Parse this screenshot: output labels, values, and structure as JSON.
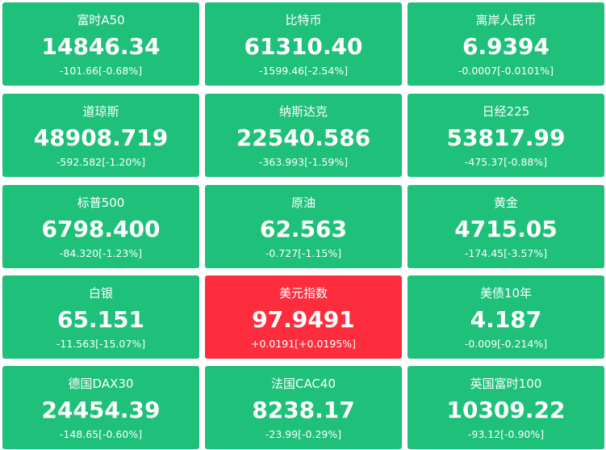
{
  "tiles": [
    {
      "name": "富时A50",
      "price": "14846.34",
      "change": "-101.66[-0.68%]",
      "color": "#1ec07a"
    },
    {
      "name": "比特币",
      "price": "61310.40",
      "change": "-1599.46[-2.54%]",
      "color": "#1ec07a"
    },
    {
      "name": "离岸人民币",
      "price": "6.9394",
      "change": "-0.0007[-0.0101%]",
      "color": "#1ec07a"
    },
    {
      "name": "道琼斯",
      "price": "48908.719",
      "change": "-592.582[-1.20%]",
      "color": "#1ec07a"
    },
    {
      "name": "纳斯达克",
      "price": "22540.586",
      "change": "-363.993[-1.59%]",
      "color": "#1ec07a"
    },
    {
      "name": "日经225",
      "price": "53817.99",
      "change": "-475.37[-0.88%]",
      "color": "#1ec07a"
    },
    {
      "name": "标普500",
      "price": "6798.400",
      "change": "-84.320[-1.23%]",
      "color": "#1ec07a"
    },
    {
      "name": "原油",
      "price": "62.563",
      "change": "-0.727[-1.15%]",
      "color": "#1ec07a"
    },
    {
      "name": "黄金",
      "price": "4715.05",
      "change": "-174.45[-3.57%]",
      "color": "#1ec07a"
    },
    {
      "name": "白银",
      "price": "65.151",
      "change": "-11.563[-15.07%]",
      "color": "#1ec07a"
    },
    {
      "name": "美元指数",
      "price": "97.9491",
      "change": "+0.0191[+0.0195%]",
      "color": "#fd2d3e"
    },
    {
      "name": "美债10年",
      "price": "4.187",
      "change": "-0.009[-0.214%]",
      "color": "#1ec07a"
    },
    {
      "name": "德国DAX30",
      "price": "24454.39",
      "change": "-148.65[-0.60%]",
      "color": "#1ec07a"
    },
    {
      "name": "法国CAC40",
      "price": "8238.17",
      "change": "-23.99[-0.29%]",
      "color": "#1ec07a"
    },
    {
      "name": "英国富时100",
      "price": "10309.22",
      "change": "-93.12[-0.90%]",
      "color": "#1ec07a"
    }
  ]
}
